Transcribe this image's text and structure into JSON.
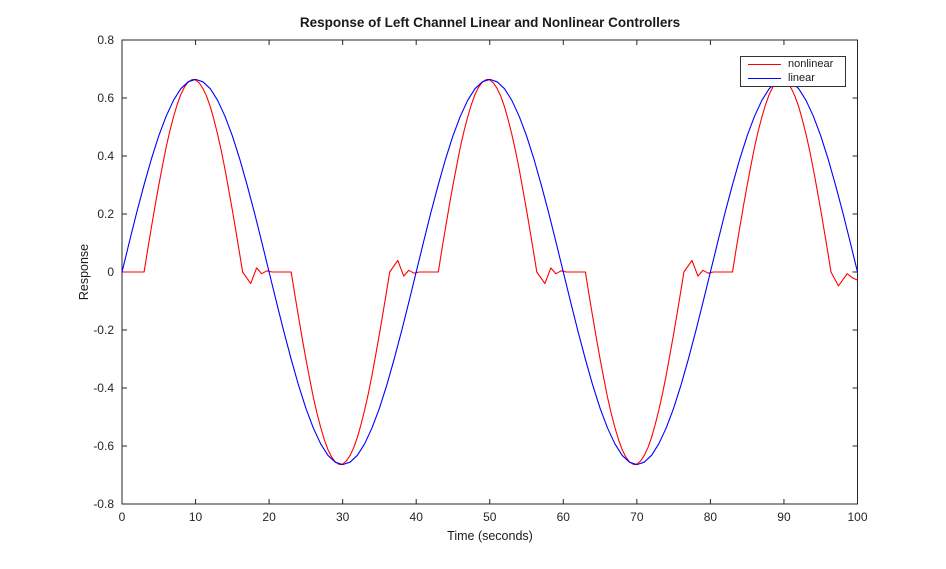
{
  "chart_data": {
    "type": "line",
    "title": "Response of Left Channel Linear and Nonlinear Controllers",
    "xlabel": "Time (seconds)",
    "ylabel": "Response",
    "xlim": [
      0,
      100
    ],
    "ylim": [
      -0.8,
      0.8
    ],
    "xticks": [
      0,
      10,
      20,
      30,
      40,
      50,
      60,
      70,
      80,
      90,
      100
    ],
    "xtick_labels": [
      "0",
      "10",
      "20",
      "30",
      "40",
      "50",
      "60",
      "70",
      "80",
      "90",
      "100"
    ],
    "yticks": [
      -0.8,
      -0.6,
      -0.4,
      -0.2,
      0,
      0.2,
      0.4,
      0.6,
      0.8
    ],
    "ytick_labels": [
      "-0.8",
      "-0.6",
      "-0.4",
      "-0.2",
      "0",
      "0.2",
      "0.4",
      "0.6",
      "0.8"
    ],
    "grid": false,
    "axis_color": "#262626",
    "background_color": "#ffffff",
    "legend": {
      "position": "top-right",
      "entries": [
        "nonlinear",
        "linear"
      ]
    },
    "series": [
      {
        "name": "nonlinear",
        "color": "#ff0000",
        "x": [
          0,
          3,
          3.5,
          4,
          4.5,
          5,
          5.5,
          6,
          6.5,
          7,
          7.5,
          8,
          8.5,
          9,
          9.5,
          9.7,
          10,
          10.5,
          11,
          11.5,
          12,
          12.5,
          13,
          13.5,
          14,
          14.5,
          15,
          15.5,
          16,
          16.4,
          17.5,
          18.3,
          19,
          19.7,
          20.4,
          23,
          23.5,
          24,
          24.5,
          25,
          25.5,
          26,
          26.5,
          27,
          27.5,
          28,
          28.5,
          29,
          29.5,
          29.7,
          30,
          30.5,
          31,
          31.5,
          32,
          32.5,
          33,
          33.5,
          34,
          34.5,
          35,
          35.5,
          36,
          36.4,
          37.5,
          38.3,
          39,
          39.7,
          40.4,
          43,
          43.5,
          44,
          44.5,
          45,
          45.5,
          46,
          46.5,
          47,
          47.5,
          48,
          48.5,
          49,
          49.5,
          49.7,
          50,
          50.5,
          51,
          51.5,
          52,
          52.5,
          53,
          53.5,
          54,
          54.5,
          55,
          55.5,
          56,
          56.4,
          57.5,
          58.3,
          59,
          59.7,
          60.4,
          63,
          63.5,
          64,
          64.5,
          65,
          65.5,
          66,
          66.5,
          67,
          67.5,
          68,
          68.5,
          69,
          69.5,
          69.7,
          70,
          70.5,
          71,
          71.5,
          72,
          72.5,
          73,
          73.5,
          74,
          74.5,
          75,
          75.5,
          76,
          76.4,
          77.5,
          78.3,
          79,
          79.7,
          80.4,
          83,
          83.5,
          84,
          84.5,
          85,
          85.5,
          86,
          86.5,
          87,
          87.5,
          88,
          88.5,
          89,
          89.5,
          89.7,
          90,
          90.5,
          91,
          91.5,
          92,
          92.5,
          93,
          93.5,
          94,
          94.5,
          95,
          95.5,
          96,
          96.4,
          97.4,
          98.6,
          99.3,
          100
        ],
        "y": [
          0,
          0,
          0.078,
          0.154,
          0.229,
          0.3,
          0.367,
          0.43,
          0.486,
          0.535,
          0.578,
          0.612,
          0.638,
          0.655,
          0.663,
          0.664,
          0.662,
          0.652,
          0.633,
          0.606,
          0.57,
          0.526,
          0.475,
          0.418,
          0.354,
          0.286,
          0.214,
          0.139,
          0.062,
          0,
          -0.04,
          0.014,
          -0.006,
          0.004,
          0,
          0,
          -0.078,
          -0.154,
          -0.229,
          -0.3,
          -0.367,
          -0.43,
          -0.486,
          -0.535,
          -0.578,
          -0.612,
          -0.638,
          -0.655,
          -0.663,
          -0.664,
          -0.662,
          -0.652,
          -0.633,
          -0.606,
          -0.57,
          -0.526,
          -0.475,
          -0.418,
          -0.354,
          -0.286,
          -0.214,
          -0.139,
          -0.062,
          0,
          0.04,
          -0.014,
          0.006,
          -0.004,
          0,
          0,
          0.078,
          0.154,
          0.229,
          0.3,
          0.367,
          0.43,
          0.486,
          0.535,
          0.578,
          0.612,
          0.638,
          0.655,
          0.663,
          0.664,
          0.662,
          0.652,
          0.633,
          0.606,
          0.57,
          0.526,
          0.475,
          0.418,
          0.354,
          0.286,
          0.214,
          0.139,
          0.062,
          0,
          -0.04,
          0.014,
          -0.006,
          0.004,
          0,
          0,
          -0.078,
          -0.154,
          -0.229,
          -0.3,
          -0.367,
          -0.43,
          -0.486,
          -0.535,
          -0.578,
          -0.612,
          -0.638,
          -0.655,
          -0.663,
          -0.664,
          -0.662,
          -0.652,
          -0.633,
          -0.606,
          -0.57,
          -0.526,
          -0.475,
          -0.418,
          -0.354,
          -0.286,
          -0.214,
          -0.139,
          -0.062,
          0,
          0.04,
          -0.014,
          0.006,
          -0.004,
          0,
          0,
          0.078,
          0.154,
          0.229,
          0.3,
          0.367,
          0.43,
          0.486,
          0.535,
          0.578,
          0.612,
          0.638,
          0.655,
          0.663,
          0.664,
          0.662,
          0.652,
          0.633,
          0.606,
          0.57,
          0.526,
          0.475,
          0.418,
          0.354,
          0.286,
          0.214,
          0.139,
          0.062,
          0,
          -0.048,
          -0.006,
          -0.02,
          -0.028
        ]
      },
      {
        "name": "linear",
        "color": "#0000ff",
        "x": [
          0,
          1,
          2,
          3,
          4,
          5,
          6,
          7,
          8,
          9,
          10,
          11,
          12,
          13,
          14,
          15,
          16,
          17,
          18,
          19,
          20,
          21,
          22,
          23,
          24,
          25,
          26,
          27,
          28,
          29,
          30,
          31,
          32,
          33,
          34,
          35,
          36,
          37,
          38,
          39,
          40,
          41,
          42,
          43,
          44,
          45,
          46,
          47,
          48,
          49,
          50,
          51,
          52,
          53,
          54,
          55,
          56,
          57,
          58,
          59,
          60,
          61,
          62,
          63,
          64,
          65,
          66,
          67,
          68,
          69,
          70,
          71,
          72,
          73,
          74,
          75,
          76,
          77,
          78,
          79,
          80,
          81,
          82,
          83,
          84,
          85,
          86,
          87,
          88,
          89,
          90,
          91,
          92,
          93,
          94,
          95,
          96,
          97,
          98,
          99,
          100
        ],
        "y": [
          0,
          0.104,
          0.205,
          0.301,
          0.39,
          0.47,
          0.537,
          0.592,
          0.632,
          0.656,
          0.664,
          0.656,
          0.632,
          0.592,
          0.537,
          0.47,
          0.39,
          0.301,
          0.205,
          0.104,
          0,
          -0.104,
          -0.205,
          -0.301,
          -0.39,
          -0.47,
          -0.537,
          -0.592,
          -0.632,
          -0.656,
          -0.664,
          -0.656,
          -0.632,
          -0.592,
          -0.537,
          -0.47,
          -0.39,
          -0.301,
          -0.205,
          -0.104,
          0,
          0.104,
          0.205,
          0.301,
          0.39,
          0.47,
          0.537,
          0.592,
          0.632,
          0.656,
          0.664,
          0.656,
          0.632,
          0.592,
          0.537,
          0.47,
          0.39,
          0.301,
          0.205,
          0.104,
          0,
          -0.104,
          -0.205,
          -0.301,
          -0.39,
          -0.47,
          -0.537,
          -0.592,
          -0.632,
          -0.656,
          -0.664,
          -0.656,
          -0.632,
          -0.592,
          -0.537,
          -0.47,
          -0.39,
          -0.301,
          -0.205,
          -0.104,
          0,
          0.104,
          0.205,
          0.301,
          0.39,
          0.47,
          0.537,
          0.592,
          0.632,
          0.656,
          0.664,
          0.656,
          0.632,
          0.592,
          0.537,
          0.47,
          0.39,
          0.301,
          0.205,
          0.104,
          0
        ]
      }
    ]
  }
}
